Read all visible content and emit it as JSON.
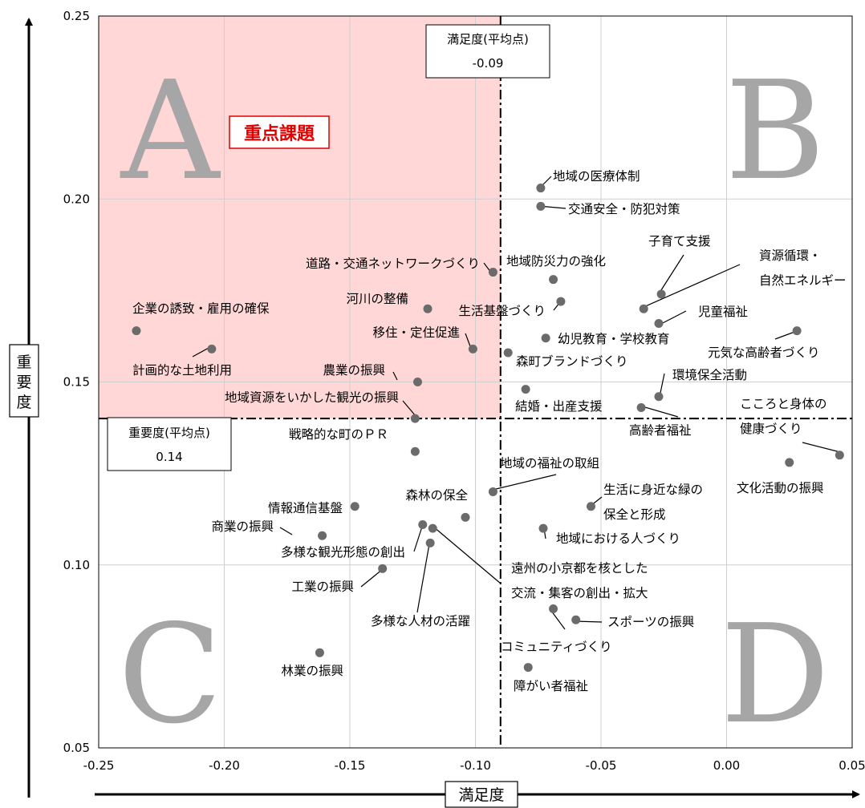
{
  "chart_data": {
    "type": "scatter",
    "xlabel": "満足度",
    "ylabel": "重要度",
    "xlim": [
      -0.25,
      0.05
    ],
    "ylim": [
      0.05,
      0.25
    ],
    "x_ticks": [
      "-0.25",
      "-0.20",
      "-0.15",
      "-0.10",
      "-0.05",
      "0.00",
      "0.05"
    ],
    "y_ticks": [
      "0.05",
      "0.10",
      "0.15",
      "0.20",
      "0.25"
    ],
    "grid": true,
    "mean_x": {
      "label": "満足度(平均点)",
      "value_text": "-0.09",
      "value": -0.09
    },
    "mean_y": {
      "label": "重要度(平均点)",
      "value_text": "0.14",
      "value": 0.14
    },
    "quadrants": [
      "A",
      "B",
      "C",
      "D"
    ],
    "highlight_label": "重点課題",
    "highlight_color": "#ffd7d7",
    "points": [
      {
        "label": "地域の医療体制",
        "x": -0.074,
        "y": 0.203
      },
      {
        "label": "交通安全・防犯対策",
        "x": -0.074,
        "y": 0.198
      },
      {
        "label": "道路・交通ネットワークづくり",
        "x": -0.093,
        "y": 0.18
      },
      {
        "label": "地域防災力の強化",
        "x": -0.069,
        "y": 0.178
      },
      {
        "label": "生活基盤づくり",
        "x": -0.066,
        "y": 0.172
      },
      {
        "label": "河川の整備",
        "x": -0.119,
        "y": 0.17
      },
      {
        "label": "企業の誘致・雇用の確保",
        "x": -0.235,
        "y": 0.164
      },
      {
        "label": "移住・定住促進",
        "x": -0.101,
        "y": 0.159
      },
      {
        "label": "幼児教育・学校教育",
        "x": -0.072,
        "y": 0.162
      },
      {
        "label": "森町ブランドづくり",
        "x": -0.087,
        "y": 0.158
      },
      {
        "label": "計画的な土地利用",
        "x": -0.205,
        "y": 0.159
      },
      {
        "label": "農業の振興",
        "x": -0.123,
        "y": 0.15
      },
      {
        "label": "子育て支援",
        "x": -0.026,
        "y": 0.174
      },
      {
        "label": "資源循環・自然エネルギー",
        "x": -0.033,
        "y": 0.17
      },
      {
        "label": "児童福祉",
        "x": -0.027,
        "y": 0.166
      },
      {
        "label": "元気な高齢者づくり",
        "x": 0.028,
        "y": 0.164
      },
      {
        "label": "環境保全活動",
        "x": -0.027,
        "y": 0.146
      },
      {
        "label": "結婚・出産支援",
        "x": -0.08,
        "y": 0.148
      },
      {
        "label": "高齢者福祉",
        "x": -0.034,
        "y": 0.143
      },
      {
        "label": "地域資源をいかした観光の振興",
        "x": -0.124,
        "y": 0.14
      },
      {
        "label": "戦略的な町のＰＲ",
        "x": -0.124,
        "y": 0.131
      },
      {
        "label": "こころと身体の健康づくり",
        "x": 0.045,
        "y": 0.13
      },
      {
        "label": "文化活動の振興",
        "x": 0.025,
        "y": 0.128
      },
      {
        "label": "地域の福祉の取組",
        "x": -0.093,
        "y": 0.12
      },
      {
        "label": "森林の保全",
        "x": -0.104,
        "y": 0.113
      },
      {
        "label": "情報通信基盤",
        "x": -0.148,
        "y": 0.116
      },
      {
        "label": "生活に身近な緑の保全と形成",
        "x": -0.054,
        "y": 0.116
      },
      {
        "label": "商業の振興",
        "x": -0.161,
        "y": 0.108
      },
      {
        "label": "多様な観光形態の創出",
        "x": -0.121,
        "y": 0.111
      },
      {
        "label": "遠州の小京都を核とした交流・集客の創出・拡大",
        "x": -0.117,
        "y": 0.11
      },
      {
        "label": "地域における人づくり",
        "x": -0.073,
        "y": 0.11
      },
      {
        "label": "多様な人材の活躍",
        "x": -0.118,
        "y": 0.106
      },
      {
        "label": "工業の振興",
        "x": -0.137,
        "y": 0.099
      },
      {
        "label": "スポーツの振興",
        "x": -0.06,
        "y": 0.085
      },
      {
        "label": "コミュニティづくり",
        "x": -0.069,
        "y": 0.088
      },
      {
        "label": "林業の振興",
        "x": -0.162,
        "y": 0.076
      },
      {
        "label": "障がい者福祉",
        "x": -0.079,
        "y": 0.072
      }
    ]
  }
}
